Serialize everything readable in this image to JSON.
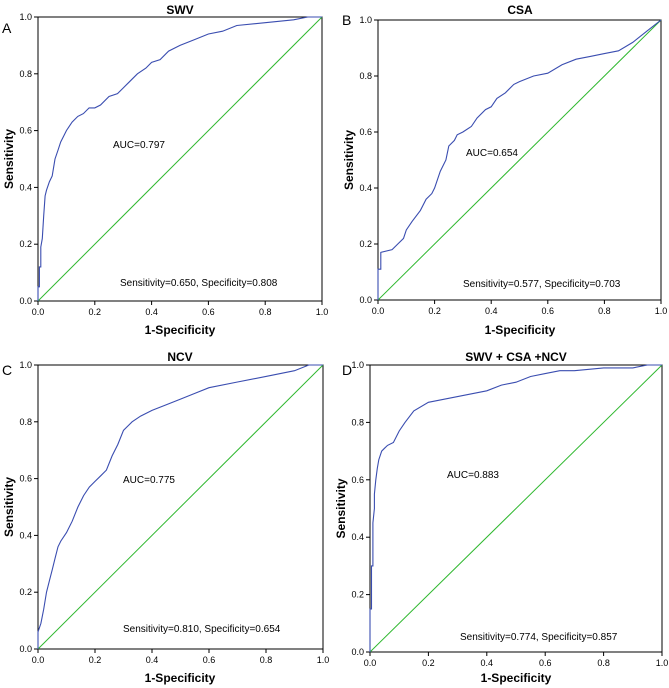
{
  "figure": {
    "colors": {
      "roc": "#3a4db0",
      "reference": "#2fb82f",
      "frame": "#000000"
    }
  },
  "chart_data": [
    {
      "panel": "A",
      "title": "SWV",
      "type": "line",
      "xlabel": "1-Specificity",
      "ylabel": "Sensitivity",
      "xlim": [
        0,
        1
      ],
      "ylim": [
        0,
        1
      ],
      "xticks": [
        "0.0",
        "0.2",
        "0.4",
        "0.6",
        "0.8",
        "1.0"
      ],
      "yticks": [
        "0.0",
        "0.2",
        "0.4",
        "0.6",
        "0.8",
        "1.0"
      ],
      "auc_label": "AUC=0.797",
      "stats_label": "Sensitivity=0.650, Specificity=0.808",
      "series": [
        {
          "name": "ROC",
          "x": [
            0,
            0,
            0.005,
            0.005,
            0.01,
            0.01,
            0.015,
            0.02,
            0.025,
            0.03,
            0.04,
            0.05,
            0.06,
            0.07,
            0.08,
            0.09,
            0.1,
            0.12,
            0.14,
            0.16,
            0.18,
            0.2,
            0.22,
            0.25,
            0.28,
            0.3,
            0.32,
            0.35,
            0.38,
            0.4,
            0.43,
            0.46,
            0.5,
            0.55,
            0.6,
            0.65,
            0.7,
            0.8,
            0.9,
            0.95,
            1.0
          ],
          "y": [
            0,
            0.05,
            0.05,
            0.12,
            0.12,
            0.19,
            0.22,
            0.3,
            0.37,
            0.39,
            0.42,
            0.44,
            0.5,
            0.53,
            0.56,
            0.58,
            0.6,
            0.63,
            0.65,
            0.66,
            0.68,
            0.68,
            0.69,
            0.72,
            0.73,
            0.75,
            0.77,
            0.8,
            0.82,
            0.84,
            0.85,
            0.88,
            0.9,
            0.92,
            0.94,
            0.95,
            0.97,
            0.98,
            0.99,
            1.0,
            1.0
          ]
        },
        {
          "name": "Reference",
          "x": [
            0,
            1
          ],
          "y": [
            0,
            1
          ]
        }
      ]
    },
    {
      "panel": "B",
      "title": "CSA",
      "type": "line",
      "xlabel": "1-Specificity",
      "ylabel": "Sensitivity",
      "xlim": [
        0,
        1
      ],
      "ylim": [
        0,
        1
      ],
      "xticks": [
        "0.0",
        "0.2",
        "0.4",
        "0.6",
        "0.8",
        "1.0"
      ],
      "yticks": [
        "0.0",
        "0.2",
        "0.4",
        "0.6",
        "0.8",
        "1.0"
      ],
      "auc_label": "AUC=0.654",
      "stats_label": "Sensitivity=0.577, Specificity=0.703",
      "series": [
        {
          "name": "ROC",
          "x": [
            0,
            0,
            0.01,
            0.01,
            0.05,
            0.07,
            0.09,
            0.1,
            0.12,
            0.15,
            0.17,
            0.19,
            0.2,
            0.22,
            0.24,
            0.25,
            0.27,
            0.28,
            0.3,
            0.33,
            0.35,
            0.38,
            0.4,
            0.42,
            0.45,
            0.48,
            0.5,
            0.55,
            0.6,
            0.65,
            0.7,
            0.75,
            0.8,
            0.85,
            0.9,
            0.95,
            1.0
          ],
          "y": [
            0,
            0.11,
            0.11,
            0.17,
            0.18,
            0.2,
            0.22,
            0.25,
            0.28,
            0.32,
            0.36,
            0.38,
            0.4,
            0.46,
            0.5,
            0.55,
            0.57,
            0.59,
            0.6,
            0.62,
            0.65,
            0.68,
            0.69,
            0.72,
            0.74,
            0.77,
            0.78,
            0.8,
            0.81,
            0.84,
            0.86,
            0.87,
            0.88,
            0.89,
            0.92,
            0.96,
            1.0
          ]
        },
        {
          "name": "Reference",
          "x": [
            0,
            1
          ],
          "y": [
            0,
            1
          ]
        }
      ]
    },
    {
      "panel": "C",
      "title": "NCV",
      "type": "line",
      "xlabel": "1-Specificity",
      "ylabel": "Sensitivity",
      "xlim": [
        0,
        1
      ],
      "ylim": [
        0,
        1
      ],
      "xticks": [
        "0.0",
        "0.2",
        "0.4",
        "0.6",
        "0.8",
        "1.0"
      ],
      "yticks": [
        "0.0",
        "0.2",
        "0.4",
        "0.6",
        "0.8",
        "1.0"
      ],
      "auc_label": "AUC=0.775",
      "stats_label": "Sensitivity=0.810, Specificity=0.654",
      "series": [
        {
          "name": "ROC",
          "x": [
            0,
            0,
            0.01,
            0.02,
            0.03,
            0.04,
            0.05,
            0.06,
            0.07,
            0.08,
            0.1,
            0.12,
            0.14,
            0.16,
            0.18,
            0.2,
            0.22,
            0.24,
            0.26,
            0.28,
            0.3,
            0.33,
            0.36,
            0.4,
            0.45,
            0.5,
            0.55,
            0.6,
            0.7,
            0.8,
            0.9,
            0.95,
            1.0
          ],
          "y": [
            0,
            0.06,
            0.09,
            0.14,
            0.2,
            0.24,
            0.28,
            0.32,
            0.36,
            0.38,
            0.41,
            0.45,
            0.5,
            0.54,
            0.57,
            0.59,
            0.61,
            0.63,
            0.68,
            0.72,
            0.77,
            0.8,
            0.82,
            0.84,
            0.86,
            0.88,
            0.9,
            0.92,
            0.94,
            0.96,
            0.98,
            1.0,
            1.0
          ]
        },
        {
          "name": "Reference",
          "x": [
            0,
            1
          ],
          "y": [
            0,
            1
          ]
        }
      ]
    },
    {
      "panel": "D",
      "title": "SWV + CSA +NCV",
      "type": "line",
      "xlabel": "1-Specificity",
      "ylabel": "Sensitivity",
      "xlim": [
        0,
        1
      ],
      "ylim": [
        0,
        1
      ],
      "xticks": [
        "0.0",
        "0.2",
        "0.4",
        "0.6",
        "0.8",
        "1.0"
      ],
      "yticks": [
        "0.0",
        "0.2",
        "0.4",
        "0.6",
        "0.8",
        "1.0"
      ],
      "auc_label": "AUC=0.883",
      "stats_label": "Sensitivity=0.774, Specificity=0.857",
      "series": [
        {
          "name": "ROC",
          "x": [
            0,
            0,
            0.005,
            0.005,
            0.01,
            0.01,
            0.015,
            0.015,
            0.02,
            0.025,
            0.03,
            0.04,
            0.05,
            0.06,
            0.08,
            0.1,
            0.12,
            0.15,
            0.2,
            0.25,
            0.3,
            0.35,
            0.4,
            0.45,
            0.5,
            0.55,
            0.6,
            0.65,
            0.7,
            0.8,
            0.9,
            0.95,
            1.0
          ],
          "y": [
            0,
            0.15,
            0.15,
            0.3,
            0.3,
            0.45,
            0.5,
            0.55,
            0.6,
            0.64,
            0.67,
            0.7,
            0.71,
            0.72,
            0.73,
            0.77,
            0.8,
            0.84,
            0.87,
            0.88,
            0.89,
            0.9,
            0.91,
            0.93,
            0.94,
            0.96,
            0.97,
            0.98,
            0.98,
            0.99,
            0.99,
            1.0,
            1.0
          ]
        },
        {
          "name": "Reference",
          "x": [
            0,
            1
          ],
          "y": [
            0,
            1
          ]
        }
      ]
    }
  ]
}
